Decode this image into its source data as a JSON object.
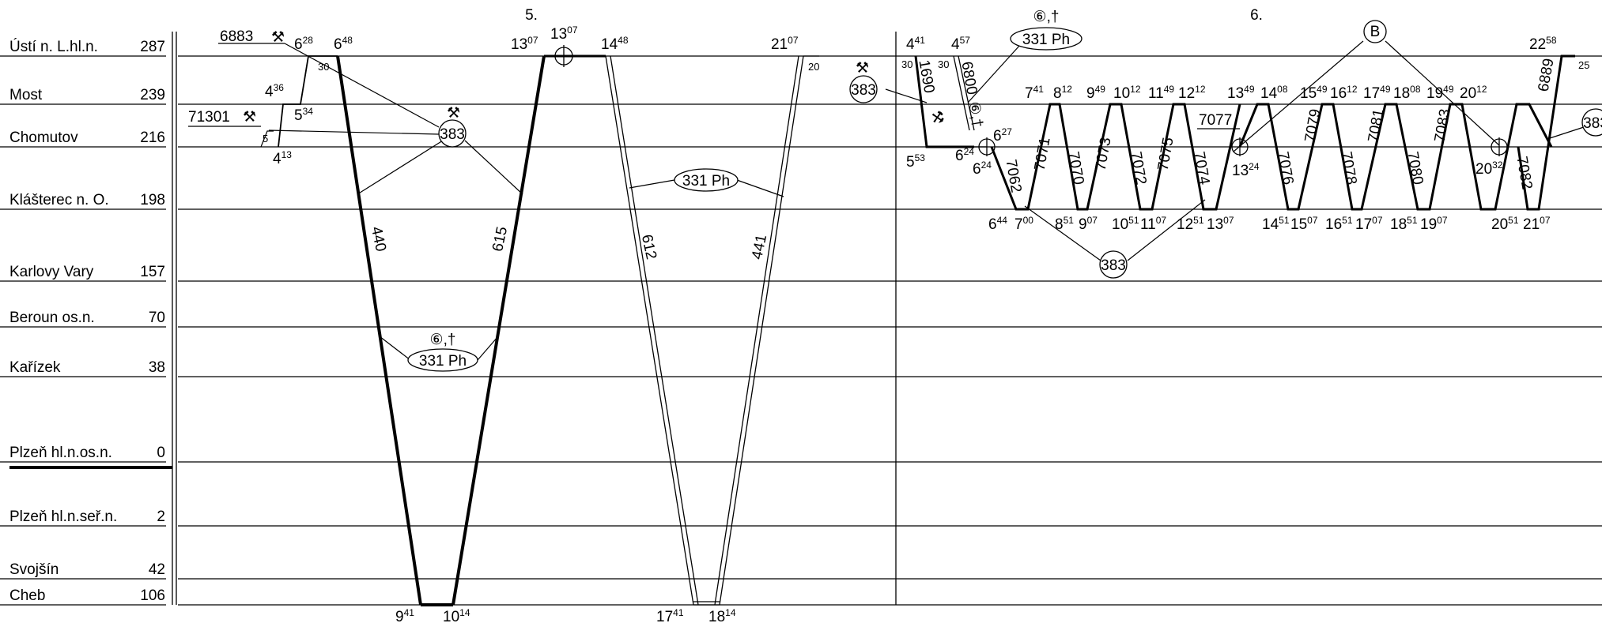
{
  "columns": [
    {
      "label": "5."
    },
    {
      "label": "6."
    }
  ],
  "stations": [
    {
      "id": "usti",
      "name": "Ústí n. L.hl.n.",
      "km": "287"
    },
    {
      "id": "most",
      "name": "Most",
      "km": "239"
    },
    {
      "id": "chomutov",
      "name": "Chomutov",
      "km": "216"
    },
    {
      "id": "klasterec",
      "name": "Klášterec n. O.",
      "km": "198"
    },
    {
      "id": "karlovy",
      "name": "Karlovy Vary",
      "km": "157"
    },
    {
      "id": "beroun",
      "name": "Beroun os.n.",
      "km": "70"
    },
    {
      "id": "karizek",
      "name": "Kařízek",
      "km": "38"
    },
    {
      "id": "plzenhl",
      "name": "Plzeň hl.n.os.n.",
      "km": "0"
    },
    {
      "id": "plzenser",
      "name": "Plzeň hl.n.seř.n.",
      "km": "2"
    },
    {
      "id": "svojsin",
      "name": "Svojšín",
      "km": "42"
    },
    {
      "id": "cheb",
      "name": "Cheb",
      "km": "106"
    }
  ],
  "train_numbers": {
    "t440": "440",
    "t615": "615",
    "t612": "612",
    "t441": "441",
    "t1690": "1690",
    "t6800": "6800",
    "t7062": "7062",
    "t7071": "7071",
    "t7070": "7070",
    "t7073": "7073",
    "t7072": "7072",
    "t7075": "7075",
    "t7074": "7074",
    "t7079": "7079",
    "t7076": "7076",
    "t7078": "7078",
    "t7081": "7081",
    "t7083": "7083",
    "t7080": "7080",
    "t7082": "7082",
    "t6889": "6889",
    "t6883": "6883",
    "t71301": "71301",
    "t7077": "7077"
  },
  "circle_labels": {
    "c383a": "383",
    "c383b": "383",
    "c383c": "383",
    "c383d": "383",
    "cB": "B",
    "e331a": "331 Ph",
    "e331b": "331 Ph",
    "e331c": "331 Ph"
  },
  "notes": {
    "n6a": "⑥,†",
    "n6b": "⑥,†",
    "n6c": "⑥,†",
    "n30a": "30",
    "n30b": "30",
    "n30c": "30",
    "n20": "20",
    "n25": "25",
    "n5": "5"
  },
  "times": [
    {
      "id": "a1",
      "h": "6",
      "m": "28"
    },
    {
      "id": "a2",
      "h": "6",
      "m": "48"
    },
    {
      "id": "a3",
      "h": "4",
      "m": "36"
    },
    {
      "id": "a4",
      "h": "5",
      "m": "34"
    },
    {
      "id": "a5",
      "h": "4",
      "m": "13"
    },
    {
      "id": "a6",
      "h": "13",
      "m": "07"
    },
    {
      "id": "a7",
      "h": "13",
      "m": "07"
    },
    {
      "id": "a8",
      "h": "14",
      "m": "48"
    },
    {
      "id": "a9",
      "h": "21",
      "m": "07"
    },
    {
      "id": "a10",
      "h": "9",
      "m": "41"
    },
    {
      "id": "a11",
      "h": "10",
      "m": "14"
    },
    {
      "id": "a12",
      "h": "17",
      "m": "41"
    },
    {
      "id": "a13",
      "h": "18",
      "m": "14"
    },
    {
      "id": "b1",
      "h": "4",
      "m": "41"
    },
    {
      "id": "b2",
      "h": "4",
      "m": "57"
    },
    {
      "id": "b3",
      "h": "5",
      "m": "53"
    },
    {
      "id": "b4",
      "h": "6",
      "m": "24"
    },
    {
      "id": "b5",
      "h": "6",
      "m": "27"
    },
    {
      "id": "b6",
      "h": "6",
      "m": "24"
    },
    {
      "id": "b7",
      "h": "6",
      "m": "44"
    },
    {
      "id": "b8",
      "h": "7",
      "m": "00"
    },
    {
      "id": "b9",
      "h": "7",
      "m": "41"
    },
    {
      "id": "b10",
      "h": "8",
      "m": "12"
    },
    {
      "id": "b11",
      "h": "8",
      "m": "51"
    },
    {
      "id": "b12",
      "h": "9",
      "m": "07"
    },
    {
      "id": "b13",
      "h": "9",
      "m": "49"
    },
    {
      "id": "b14",
      "h": "10",
      "m": "12"
    },
    {
      "id": "b15",
      "h": "10",
      "m": "51"
    },
    {
      "id": "b16",
      "h": "11",
      "m": "07"
    },
    {
      "id": "b17",
      "h": "11",
      "m": "49"
    },
    {
      "id": "b18",
      "h": "12",
      "m": "12"
    },
    {
      "id": "b19",
      "h": "12",
      "m": "51"
    },
    {
      "id": "b20",
      "h": "13",
      "m": "07"
    },
    {
      "id": "b21",
      "h": "13",
      "m": "49"
    },
    {
      "id": "b22",
      "h": "14",
      "m": "08"
    },
    {
      "id": "b23",
      "h": "13",
      "m": "24"
    },
    {
      "id": "b24",
      "h": "14",
      "m": "51"
    },
    {
      "id": "b25",
      "h": "15",
      "m": "07"
    },
    {
      "id": "b26",
      "h": "15",
      "m": "49"
    },
    {
      "id": "b27",
      "h": "16",
      "m": "12"
    },
    {
      "id": "b28",
      "h": "16",
      "m": "51"
    },
    {
      "id": "b29",
      "h": "17",
      "m": "07"
    },
    {
      "id": "b30",
      "h": "17",
      "m": "49"
    },
    {
      "id": "b31",
      "h": "18",
      "m": "08"
    },
    {
      "id": "b32",
      "h": "18",
      "m": "51"
    },
    {
      "id": "b33",
      "h": "19",
      "m": "07"
    },
    {
      "id": "b34",
      "h": "19",
      "m": "49"
    },
    {
      "id": "b35",
      "h": "20",
      "m": "12"
    },
    {
      "id": "b36",
      "h": "20",
      "m": "32"
    },
    {
      "id": "b37",
      "h": "20",
      "m": "51"
    },
    {
      "id": "b38",
      "h": "21",
      "m": "07"
    },
    {
      "id": "b39",
      "h": "22",
      "m": "58"
    }
  ]
}
